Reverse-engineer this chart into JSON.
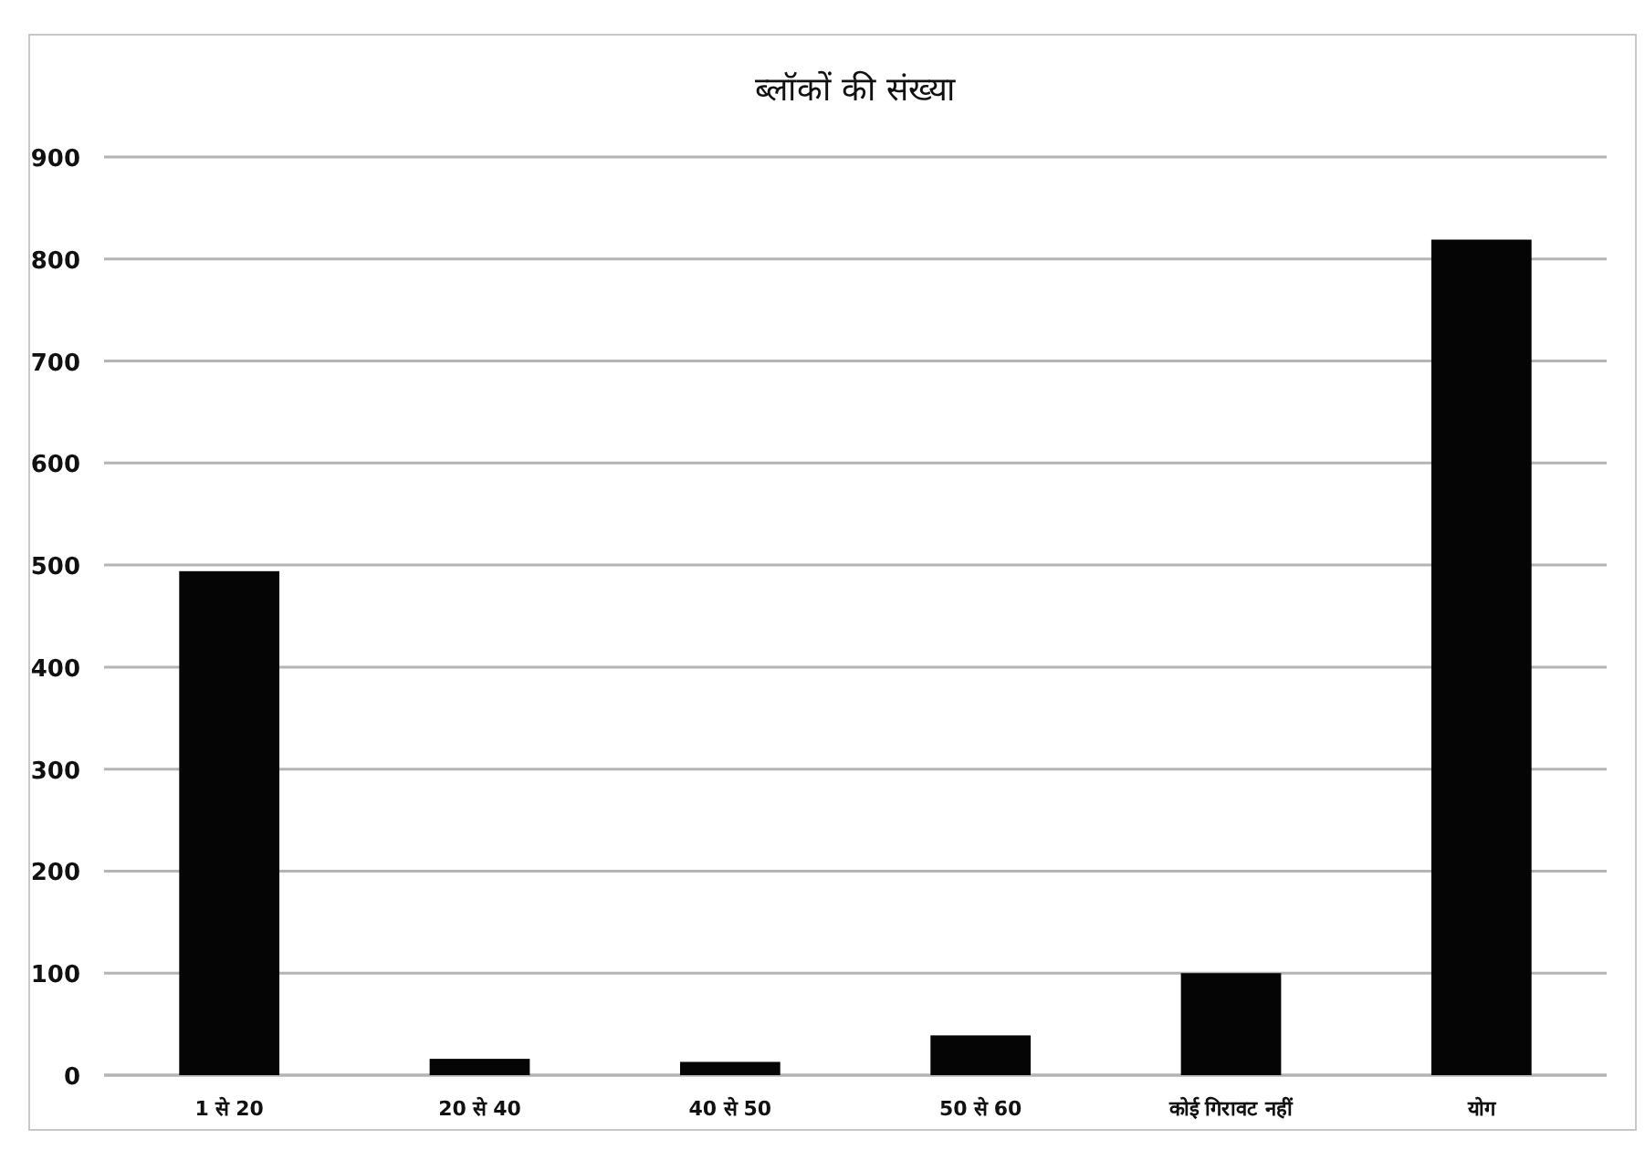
{
  "chart_data": {
    "type": "bar",
    "title": "ब्लॉकों की संख्या",
    "categories": [
      "1 से 20",
      "20 से 40",
      "40 से 50",
      "50 से 60",
      "कोई गिरावट नहीं",
      "योग"
    ],
    "values": [
      494,
      16,
      13,
      39,
      100,
      819
    ],
    "color": "#050505",
    "ylim": [
      0,
      900
    ],
    "yticks": [
      0,
      100,
      200,
      300,
      400,
      500,
      600,
      700,
      800,
      900
    ],
    "grid": "y"
  }
}
